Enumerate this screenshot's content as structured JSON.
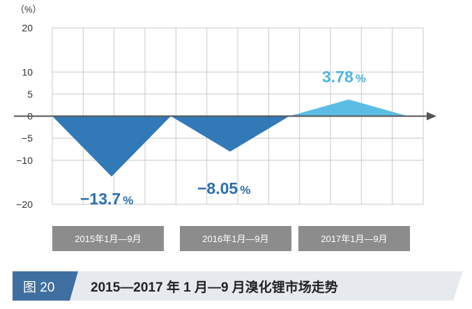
{
  "figure": {
    "number_label": "图 20",
    "title": "2015—2017 年 1 月—9 月溴化锂市场走势"
  },
  "chart_data": {
    "type": "area",
    "unit": "（%）",
    "ylim": [
      -20,
      20
    ],
    "yticks": [
      "20",
      "10",
      "5",
      "0",
      "−5",
      "−10",
      "−20"
    ],
    "ytick_values": [
      20,
      10,
      5,
      0,
      -5,
      -10,
      -20
    ],
    "grid": true,
    "categories": [
      "2015年1月—9月",
      "2016年1月—9月",
      "2017年1月—9月"
    ],
    "values": [
      -13.7,
      -8.05,
      3.78
    ],
    "data_labels": [
      {
        "number": "−13.7",
        "unit": "%"
      },
      {
        "number": "−8.05",
        "unit": "%"
      },
      {
        "number": "3.78",
        "unit": "%"
      }
    ],
    "colors": {
      "negative": "#3279b8",
      "positive": "#5bbde4",
      "negative_label": "#2a6fad",
      "positive_label": "#4fb4e0",
      "grid": "#c8c8c8",
      "axis": "#555555",
      "category_box": "#8c8c8c",
      "figure_badge": "#3f6fa0",
      "title_band": "#e6e9ee"
    }
  }
}
